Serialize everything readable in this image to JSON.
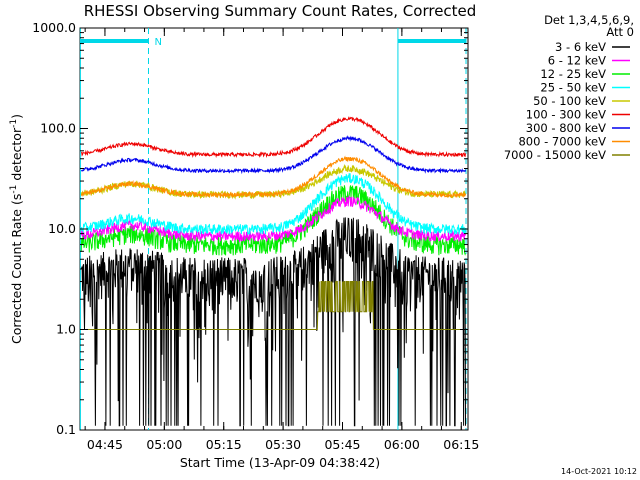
{
  "chart_data": {
    "type": "line",
    "title": "RHESSI Observing Summary Count Rates, Corrected",
    "xlabel": "Start Time (13-Apr-09 04:38:42)",
    "ylabel": "Corrected Count Rate (s",
    "ylabel_sup1": "-1",
    "ylabel_mid": " detector",
    "ylabel_sup2": "-1",
    "ylabel_end": ")",
    "y_scale": "log",
    "ylim": [
      0.1,
      1000
    ],
    "y_ticks": [
      {
        "v": 1000,
        "label": "1000.0"
      },
      {
        "v": 100,
        "label": "100.0"
      },
      {
        "v": 10,
        "label": "10.0"
      },
      {
        "v": 1,
        "label": "1.0"
      },
      {
        "v": 0.1,
        "label": "0.1"
      }
    ],
    "xlim_minutes": [
      0,
      98
    ],
    "x_ticks": [
      {
        "m": 6.3,
        "label": "04:45"
      },
      {
        "m": 21.3,
        "label": "05:00"
      },
      {
        "m": 36.3,
        "label": "05:15"
      },
      {
        "m": 51.3,
        "label": "05:30"
      },
      {
        "m": 66.3,
        "label": "05:45"
      },
      {
        "m": 81.3,
        "label": "06:00"
      },
      {
        "m": 96.3,
        "label": "06:15"
      }
    ],
    "legend_header": [
      "Det 1,3,4,5,6,9,",
      "Att 0"
    ],
    "legend_placement": "right",
    "series": [
      {
        "name": "3 - 6 keV",
        "color": "#000000",
        "base": 3.5,
        "peak": 9,
        "noise": 0.5
      },
      {
        "name": "6 - 12 keV",
        "color": "#ff00ff",
        "base": 8.5,
        "peak": 19,
        "noise": 0.12
      },
      {
        "name": "12 - 25 keV",
        "color": "#00ee00",
        "base": 7,
        "peak": 23,
        "noise": 0.22
      },
      {
        "name": "25 - 50 keV",
        "color": "#00ffff",
        "base": 10,
        "peak": 32,
        "noise": 0.12
      },
      {
        "name": "50 - 100 keV",
        "color": "#c8c800",
        "base": 22,
        "peak": 40,
        "noise": 0.08
      },
      {
        "name": "100 - 300 keV",
        "color": "#ee0000",
        "base": 55,
        "peak": 125,
        "noise": 0.04
      },
      {
        "name": "300 - 800 keV",
        "color": "#0000ee",
        "base": 38,
        "peak": 80,
        "noise": 0.04
      },
      {
        "name": "800 - 7000 keV",
        "color": "#ff8c00",
        "base": 22,
        "peak": 50,
        "noise": 0.05
      },
      {
        "name": "7000 - 15000 keV",
        "color": "#808000",
        "base": 1,
        "peak": 3,
        "noise": 0.3
      }
    ],
    "saa_flag_label": "N",
    "night_segments_minutes": [
      [
        0,
        17.3
      ],
      [
        80.3,
        97.5
      ]
    ],
    "attenuator_lines_minutes": [
      0.1,
      17.3,
      80.3,
      97.5
    ],
    "night_color": "#00d8e8"
  },
  "footer": {
    "timestamp": "14-Oct-2021 10:12"
  }
}
